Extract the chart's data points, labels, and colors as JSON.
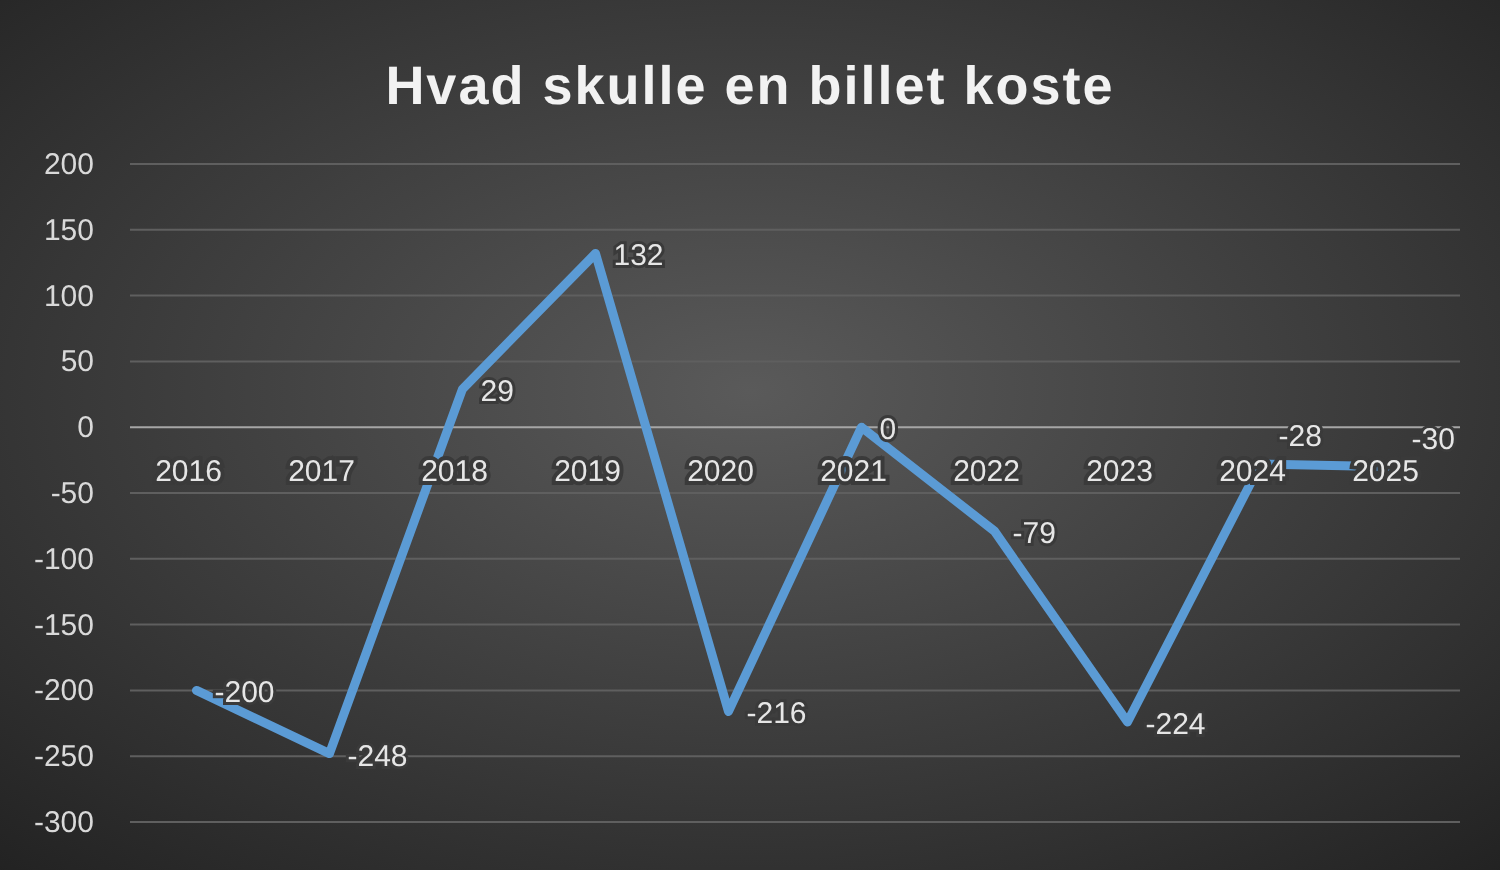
{
  "chart_data": {
    "type": "line",
    "title": "Hvad skulle en billet koste",
    "categories": [
      "2016",
      "2017",
      "2018",
      "2019",
      "2020",
      "2021",
      "2022",
      "2023",
      "2024",
      "2025"
    ],
    "series": [
      {
        "color": "#5b9bd5",
        "values": [
          -200,
          -248,
          29,
          132,
          -216,
          0,
          -79,
          -224,
          -28,
          -30
        ]
      }
    ],
    "ylim": [
      -300,
      200
    ],
    "yticks": [
      -300,
      -250,
      -200,
      -150,
      -100,
      -50,
      0,
      50,
      100,
      150,
      200
    ],
    "grid": "y",
    "data_labels": true,
    "marker": "none",
    "line_style": "solid"
  }
}
